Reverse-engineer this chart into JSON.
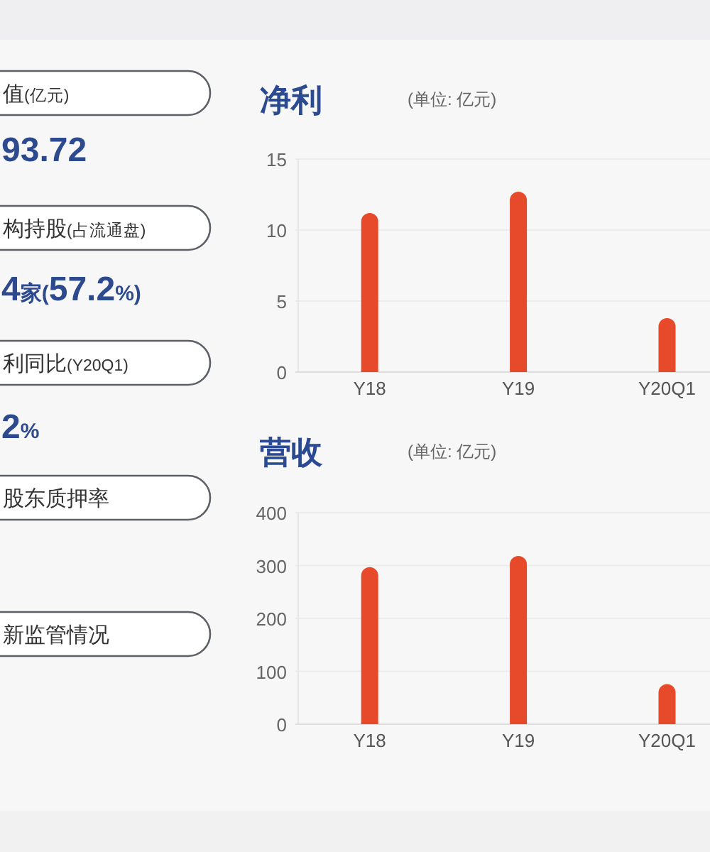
{
  "chart_data": [
    {
      "type": "other",
      "annotations": [
        "值(亿元)",
        "93.72",
        "构持股(占流通盘)",
        "4家(57.2%)",
        "利同比(Y20Q1)",
        "2%",
        "股东质押率",
        "新监管情况"
      ]
    },
    {
      "type": "bar",
      "title": "净利",
      "subtitle": "(单位: 亿元)",
      "categories": [
        "Y18",
        "Y19",
        "Y20Q1"
      ],
      "values": [
        11.2,
        12.7,
        3.8
      ],
      "color": "#e64a2b",
      "ylim": [
        0,
        15
      ],
      "yticks": [
        0,
        5,
        10,
        15
      ],
      "grid": "y"
    },
    {
      "type": "bar",
      "title": "营收",
      "subtitle": "(单位: 亿元)",
      "categories": [
        "Y18",
        "Y19",
        "Y20Q1"
      ],
      "values": [
        297,
        318,
        76
      ],
      "color": "#e64a2b",
      "ylim": [
        0,
        400
      ],
      "yticks": [
        0,
        100,
        200,
        300,
        400
      ],
      "grid": "y"
    }
  ]
}
